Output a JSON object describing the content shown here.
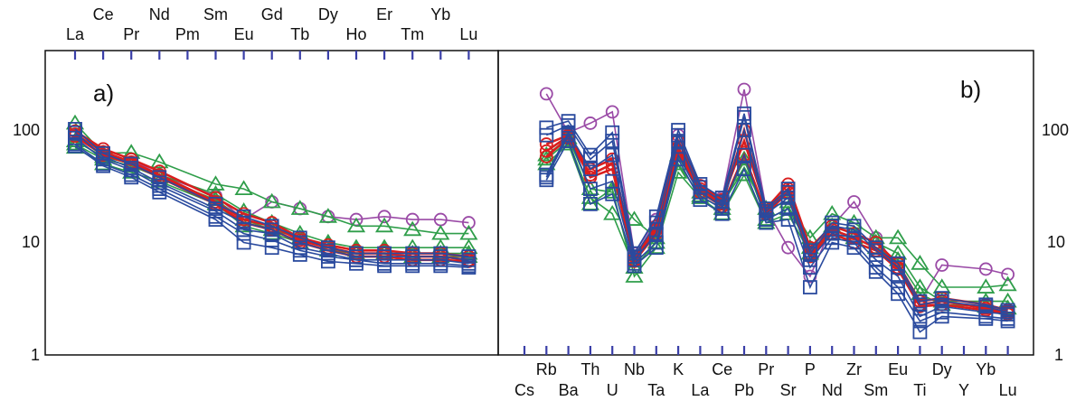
{
  "chart_data": [
    {
      "type": "line",
      "panel_label": "a)",
      "y_scale": "log",
      "ylim": [
        1,
        500
      ],
      "y_ticks": [
        "1",
        "10",
        "100"
      ],
      "x_labels_top": [
        "La",
        "Ce",
        "Pr",
        "Nd",
        "Pm",
        "Sm",
        "Eu",
        "Gd",
        "Tb",
        "Dy",
        "Ho",
        "Er",
        "Tm",
        "Yb",
        "Lu"
      ],
      "series": [
        {
          "color": "#9a4aa6",
          "marker": "circle",
          "values": [
            90,
            68,
            55,
            40,
            null,
            26,
            16,
            23,
            20,
            17,
            16,
            17,
            16,
            16,
            15
          ]
        },
        {
          "color": "#2f9e4a",
          "marker": "triangle",
          "values": [
            115,
            62,
            63,
            52,
            null,
            33,
            30,
            23,
            20,
            17,
            14,
            14,
            13,
            12,
            12
          ]
        },
        {
          "color": "#2f9e4a",
          "marker": "triangle",
          "values": [
            80,
            58,
            50,
            40,
            null,
            27,
            19,
            15,
            12,
            10,
            9,
            9,
            9,
            9,
            9
          ]
        },
        {
          "color": "#2f9e4a",
          "marker": "triangle",
          "values": [
            75,
            55,
            48,
            38,
            null,
            24,
            16,
            13,
            11,
            9.5,
            8.5,
            8.5,
            8,
            8,
            8
          ]
        },
        {
          "color": "#2f9e4a",
          "marker": "triangle",
          "values": [
            70,
            50,
            42,
            35,
            null,
            22,
            14,
            12,
            10,
            8.5,
            8,
            8,
            7.5,
            7.5,
            7.5
          ]
        },
        {
          "color": "#d91e1e",
          "marker": "circle",
          "values": [
            98,
            68,
            55,
            43,
            null,
            25,
            18,
            15,
            11,
            9.5,
            8.5,
            8.5,
            8,
            8,
            7.5
          ]
        },
        {
          "color": "#d91e1e",
          "marker": "circle",
          "values": [
            92,
            64,
            52,
            40,
            null,
            23,
            16,
            14,
            10.5,
            9,
            8,
            8,
            7.5,
            7.5,
            7
          ]
        },
        {
          "color": "#d91e1e",
          "marker": "circle",
          "values": [
            88,
            60,
            50,
            38,
            null,
            22,
            15,
            13,
            10,
            8.5,
            7.5,
            7.5,
            7,
            7,
            6.8
          ]
        },
        {
          "color": "#2a4a9e",
          "marker": "square",
          "values": [
            102,
            62,
            50,
            38,
            null,
            22,
            17,
            14,
            11,
            9,
            8,
            8,
            8,
            8,
            7.5
          ]
        },
        {
          "color": "#2a4a9e",
          "marker": "square",
          "values": [
            95,
            58,
            46,
            34,
            null,
            20,
            15,
            13,
            10,
            8.5,
            7.5,
            7.5,
            7.5,
            7.5,
            7
          ]
        },
        {
          "color": "#2a4a9e",
          "marker": "square",
          "values": [
            85,
            55,
            44,
            32,
            null,
            19,
            13,
            12,
            9,
            8,
            7,
            7,
            7,
            7,
            6.5
          ]
        },
        {
          "color": "#2a4a9e",
          "marker": "square",
          "values": [
            75,
            50,
            40,
            30,
            null,
            17,
            12,
            10.5,
            8.5,
            7.5,
            7,
            6.5,
            6.5,
            6.5,
            6.2
          ]
        },
        {
          "color": "#2a4a9e",
          "marker": "square",
          "values": [
            72,
            48,
            38,
            28,
            null,
            16,
            10,
            9,
            7.8,
            6.8,
            6.5,
            6.2,
            6.2,
            6.2,
            6
          ]
        }
      ]
    },
    {
      "type": "line",
      "panel_label": "b)",
      "y_scale": "log",
      "ylim": [
        1,
        500
      ],
      "y_ticks": [
        "1",
        "10",
        "100"
      ],
      "x_labels_row1": [
        "Rb",
        "Th",
        "Nb",
        "K",
        "Ce",
        "Pr",
        "P",
        "Zr",
        "Eu",
        "Dy",
        "Yb"
      ],
      "x_labels_row2": [
        "Cs",
        "Ba",
        "U",
        "Ta",
        "La",
        "Pb",
        "Sr",
        "Nd",
        "Sm",
        "Ti",
        "Y",
        "Lu"
      ],
      "x_order": [
        "Cs",
        "Rb",
        "Ba",
        "Th",
        "U",
        "Nb",
        "Ta",
        "K",
        "La",
        "Ce",
        "Pb",
        "Pr",
        "Sr",
        "P",
        "Nd",
        "Zr",
        "Sm",
        "Eu",
        "Ti",
        "Dy",
        "Y",
        "Yb",
        "Lu"
      ],
      "series": [
        {
          "color": "#9a4aa6",
          "marker": "circle",
          "values": [
            null,
            210,
            95,
            115,
            145,
            8,
            16,
            90,
            32,
            25,
            230,
            20,
            9,
            5,
            14,
            23,
            11,
            6,
            3,
            6.3,
            null,
            5.8,
            5.2
          ]
        },
        {
          "color": "#2f9e4a",
          "marker": "triangle",
          "values": [
            null,
            60,
            85,
            30,
            28,
            16,
            11,
            60,
            28,
            22,
            45,
            20,
            23,
            11,
            18,
            15,
            11,
            11,
            6.5,
            4,
            null,
            4,
            4.2
          ]
        },
        {
          "color": "#2f9e4a",
          "marker": "triangle",
          "values": [
            null,
            55,
            80,
            25,
            18,
            6,
            10,
            50,
            26,
            20,
            55,
            16,
            20,
            9,
            14,
            12,
            10,
            8,
            4,
            3,
            null,
            3,
            3
          ]
        },
        {
          "color": "#2f9e4a",
          "marker": "triangle",
          "values": [
            null,
            50,
            75,
            22,
            30,
            5,
            9,
            42,
            25,
            18,
            40,
            15,
            18,
            8,
            12,
            11,
            9,
            7,
            3.5,
            2.8,
            null,
            2.7,
            2.6
          ]
        },
        {
          "color": "#d91e1e",
          "marker": "circle",
          "values": [
            null,
            75,
            90,
            45,
            55,
            7.5,
            14,
            80,
            32,
            24,
            80,
            20,
            33,
            9,
            14,
            12,
            10,
            6.5,
            3,
            3.2,
            null,
            2.8,
            2.5
          ]
        },
        {
          "color": "#d91e1e",
          "marker": "circle",
          "values": [
            null,
            65,
            88,
            40,
            50,
            7,
            13,
            70,
            30,
            22,
            100,
            19,
            30,
            8,
            13,
            11,
            9,
            6,
            2.8,
            3,
            null,
            2.6,
            2.4
          ]
        },
        {
          "color": "#d91e1e",
          "marker": "circle",
          "values": [
            null,
            58,
            85,
            38,
            45,
            6.8,
            12,
            65,
            28,
            21,
            60,
            18,
            28,
            7.5,
            12,
            10,
            8.5,
            5.8,
            2.7,
            2.8,
            null,
            2.5,
            2.3
          ]
        },
        {
          "color": "#2a4a9e",
          "marker": "square",
          "values": [
            null,
            105,
            120,
            60,
            95,
            8,
            17,
            100,
            33,
            25,
            140,
            20,
            30,
            8.5,
            15,
            14,
            9,
            6.5,
            3,
            3.2,
            null,
            2.8,
            2.5
          ]
        },
        {
          "color": "#2a4a9e",
          "marker": "square",
          "values": [
            null,
            90,
            110,
            55,
            80,
            7.5,
            15,
            90,
            31,
            23,
            130,
            19,
            28,
            8,
            14,
            13,
            8.5,
            6,
            2.8,
            3,
            null,
            2.7,
            2.4
          ]
        },
        {
          "color": "#2a4a9e",
          "marker": "square",
          "values": [
            null,
            40,
            95,
            45,
            60,
            7,
            12,
            80,
            28,
            21,
            100,
            18,
            25,
            7,
            12,
            11,
            7,
            5,
            2.2,
            2.7,
            null,
            2.4,
            2.3
          ]
        },
        {
          "color": "#2a4a9e",
          "marker": "square",
          "values": [
            null,
            38,
            90,
            30,
            35,
            6.5,
            10,
            60,
            26,
            20,
            60,
            16,
            20,
            6,
            11,
            10,
            6,
            4,
            2,
            2.4,
            null,
            2.2,
            2.1
          ]
        },
        {
          "color": "#2a4a9e",
          "marker": "square",
          "values": [
            null,
            36,
            80,
            22,
            27,
            6.2,
            9,
            55,
            24,
            18,
            45,
            15,
            16,
            4,
            10,
            9,
            5.5,
            3.5,
            1.6,
            2.2,
            null,
            2.1,
            2
          ]
        }
      ]
    }
  ]
}
